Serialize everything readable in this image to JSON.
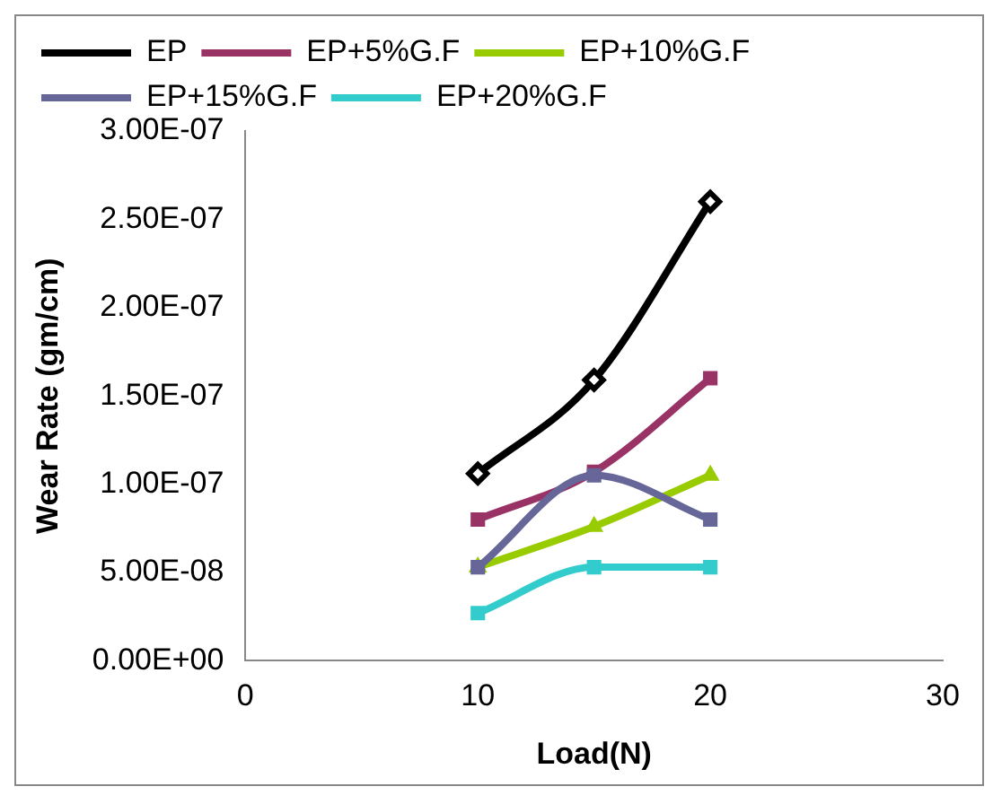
{
  "chart_data": {
    "type": "line",
    "xlabel": "Load(N)",
    "ylabel": "Wear Rate (gm/cm)",
    "x": [
      10,
      15,
      20
    ],
    "series": [
      {
        "name": "EP",
        "color": "#000000",
        "marker": "diamond",
        "values": [
          1.06e-07,
          1.59e-07,
          2.6e-07
        ]
      },
      {
        "name": "EP+5%G.F",
        "color": "#993366",
        "marker": "square",
        "values": [
          8e-08,
          1.07e-07,
          1.6e-07
        ]
      },
      {
        "name": "EP+10%G.F",
        "color": "#99cc00",
        "marker": "triangle",
        "values": [
          5.3e-08,
          7.6e-08,
          1.05e-07
        ]
      },
      {
        "name": "EP+15%G.F",
        "color": "#666699",
        "marker": "square",
        "values": [
          5.3e-08,
          1.05e-07,
          8e-08
        ]
      },
      {
        "name": "EP+20%G.F",
        "color": "#33cccc",
        "marker": "square",
        "values": [
          2.7e-08,
          5.3e-08,
          5.3e-08
        ]
      }
    ],
    "xlim": [
      0,
      30
    ],
    "xticks": [
      0,
      10,
      20,
      30
    ],
    "ylim": [
      0,
      3e-07
    ],
    "yticks": [
      {
        "value": 0,
        "label": "0.00E+00"
      },
      {
        "value": 5e-08,
        "label": "5.00E-08"
      },
      {
        "value": 1e-07,
        "label": "1.00E-07"
      },
      {
        "value": 1.5e-07,
        "label": "1.50E-07"
      },
      {
        "value": 2e-07,
        "label": "2.00E-07"
      },
      {
        "value": 2.5e-07,
        "label": "2.50E-07"
      },
      {
        "value": 3e-07,
        "label": "3.00E-07"
      }
    ],
    "grid": false,
    "legend": "top",
    "line_style": "solid"
  }
}
